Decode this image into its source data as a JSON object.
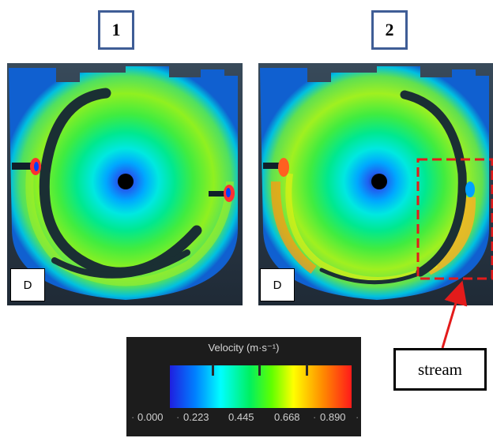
{
  "panels": [
    {
      "tag": "1",
      "corner_label": "D"
    },
    {
      "tag": "2",
      "corner_label": "D"
    }
  ],
  "callout": {
    "label": "stream"
  },
  "legend": {
    "title": "Velocity (m·s⁻¹)",
    "ticks": [
      "0.000",
      "0.223",
      "0.445",
      "0.668",
      "0.890"
    ],
    "colors": [
      "#1f1fe0",
      "#00ffff",
      "#60ff00",
      "#ffff00",
      "#ff1a1a"
    ]
  },
  "colors": {
    "tag_border": "#3f5d96",
    "highlight_box": "#e31b1b",
    "arrow": "#e31b1b",
    "legend_bg": "#1c1c1c"
  }
}
